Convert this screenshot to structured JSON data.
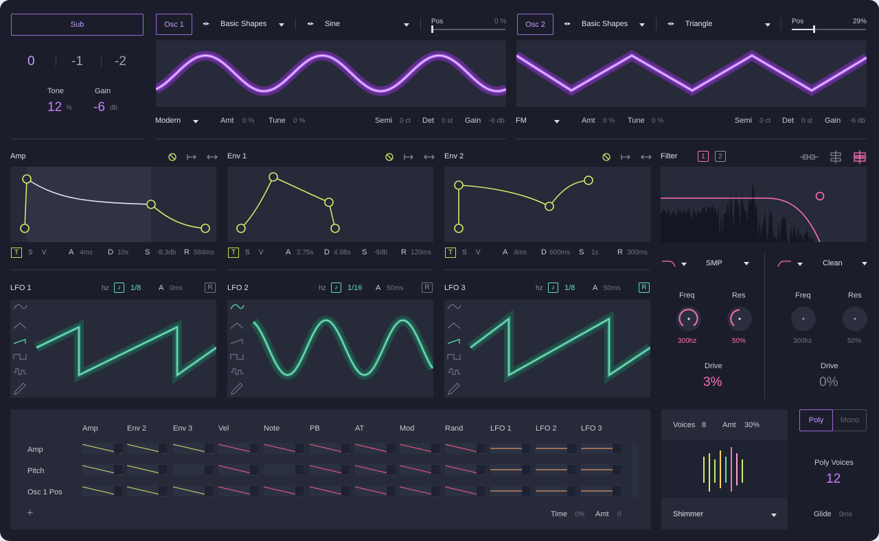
{
  "sub": {
    "button_label": "Sub",
    "octaves": [
      "0",
      "-1",
      "-2"
    ],
    "tone_label": "Tone",
    "tone_value": "12",
    "tone_unit": "%",
    "gain_label": "Gain",
    "gain_value": "-6",
    "gain_unit": "db"
  },
  "osc1": {
    "label": "Osc 1",
    "bank": "Basic Shapes",
    "wave": "Sine",
    "pos_label": "Pos",
    "pos_value": "0 %",
    "pos_level": 0,
    "mode": "Modern",
    "amt_label": "Amt",
    "amt_value": "0 %",
    "tune_label": "Tune",
    "tune_value": "0 %",
    "semi_label": "Semi",
    "semi_value": "0 ct",
    "det_label": "Det",
    "det_value": "0 st",
    "gain_label": "Gain",
    "gain_value": "-6 db"
  },
  "osc2": {
    "label": "Osc 2",
    "bank": "Basic Shapes",
    "wave": "Triangle",
    "pos_label": "Pos",
    "pos_value": "29%",
    "pos_level": 0.29,
    "mode": "FM",
    "amt_label": "Amt",
    "amt_value": "0 %",
    "tune_label": "Tune",
    "tune_value": "0 %",
    "semi_label": "Semi",
    "semi_value": "0 ct",
    "det_label": "Det",
    "det_value": "0 st",
    "gain_label": "Gain",
    "gain_value": "-6 db"
  },
  "envelopes": [
    {
      "title": "Amp",
      "t": "T",
      "s": "S",
      "v": "V",
      "a_label": "A",
      "a_value": "4ms",
      "d_label": "D",
      "d_value": "10s",
      "s_label": "S",
      "s_value": "-8.3db",
      "r_label": "R",
      "r_value": "584ms"
    },
    {
      "title": "Env 1",
      "t": "T",
      "s": "S",
      "v": "V",
      "a_label": "A",
      "a_value": "2.75s",
      "d_label": "D",
      "d_value": "4.98s",
      "s_label": "S",
      "s_value": "-9db",
      "r_label": "R",
      "r_value": "120ms"
    },
    {
      "title": "Env 2",
      "t": "T",
      "s": "S",
      "v": "V",
      "a_label": "A",
      "a_value": "4ms",
      "d_label": "D",
      "d_value": "600ms",
      "s_label": "S",
      "s_value": "1s",
      "r_label": "R",
      "r_value": "300ms"
    }
  ],
  "lfos": [
    {
      "title": "LFO 1",
      "hz": "hz",
      "rate": "1/8",
      "a_label": "A",
      "a_value": "0ms",
      "r": "R"
    },
    {
      "title": "LFO 2",
      "hz": "hz",
      "rate": "1/16",
      "a_label": "A",
      "a_value": "50ms",
      "r": "R"
    },
    {
      "title": "LFO 3",
      "hz": "hz",
      "rate": "1/8",
      "a_label": "A",
      "a_value": "50ms",
      "r": "R"
    }
  ],
  "filter": {
    "title": "Filter",
    "slot1": "1",
    "slot2": "2",
    "f1": {
      "type": "SMP",
      "freq_label": "Freq",
      "freq_value": "300hz",
      "res_label": "Res",
      "res_value": "50%",
      "drive_label": "Drive",
      "drive_value": "3%"
    },
    "f2": {
      "type": "Clean",
      "freq_label": "Freq",
      "freq_value": "300hz",
      "res_label": "Res",
      "res_value": "50%",
      "drive_label": "Drive",
      "drive_value": "0%"
    }
  },
  "matrix": {
    "columns": [
      "Amp",
      "Env 2",
      "Env 3",
      "Vel",
      "Note",
      "PB",
      "AT",
      "Mod",
      "Rand",
      "LFO 1",
      "LFO 2",
      "LFO 3"
    ],
    "rows": [
      "Amp",
      "Pitch",
      "Osc 1 Pos"
    ],
    "add": "+",
    "time_label": "Time",
    "time_value": "0%",
    "amt_label": "Amt",
    "amt_value": "0"
  },
  "unison": {
    "voices_label": "Voices",
    "voices_value": "8",
    "amt_label": "Amt",
    "amt_value": "30%",
    "mode": "Shimmer"
  },
  "voice": {
    "poly": "Poly",
    "mono": "Mono",
    "poly_voices_label": "Poly Voices",
    "poly_voices_value": "12",
    "glide_label": "Glide",
    "glide_value": "0ms"
  },
  "colors": {
    "background": "#1b1e2a",
    "panel": "#262a39",
    "osc": "#c77dff",
    "env": "#d8e66a",
    "lfo": "#62e0b8",
    "filter": "#ff6fb8"
  }
}
